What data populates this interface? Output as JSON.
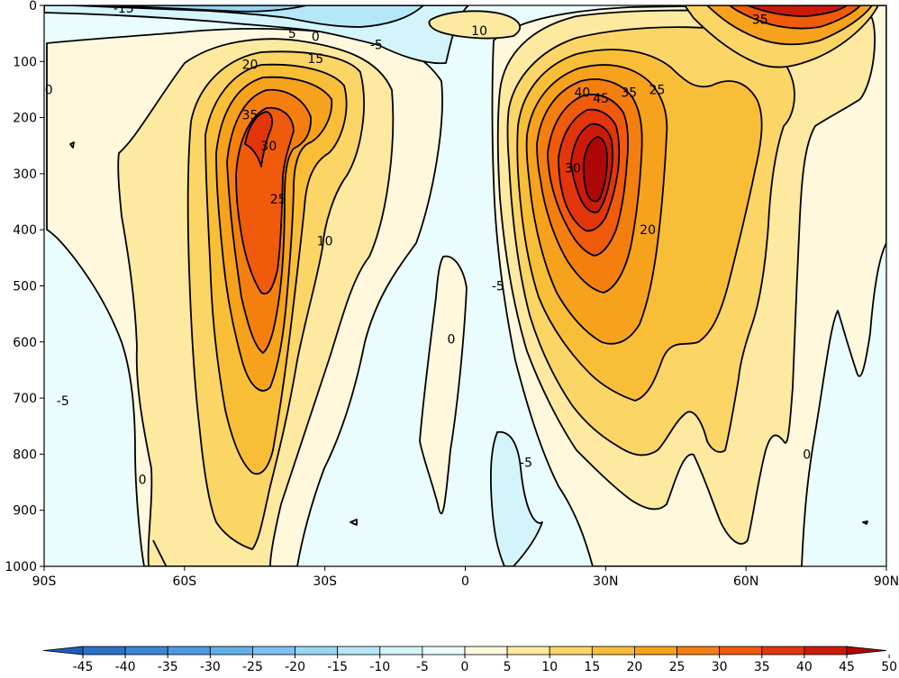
{
  "chart_data": {
    "type": "contour",
    "x_ticks": [
      "90S",
      "60S",
      "30S",
      "0",
      "30N",
      "60N",
      "90N"
    ],
    "x_values": [
      -90,
      -60,
      -30,
      0,
      30,
      60,
      90
    ],
    "y_ticks": [
      "0",
      "100",
      "200",
      "300",
      "400",
      "500",
      "600",
      "700",
      "800",
      "900",
      "1000"
    ],
    "y_values": [
      0,
      100,
      200,
      300,
      400,
      500,
      600,
      700,
      800,
      900,
      1000
    ],
    "xlim": [
      -90,
      90
    ],
    "ylim": [
      1000,
      0
    ],
    "y_inverted": true,
    "colorbar": {
      "levels": [
        -50,
        -45,
        -40,
        -35,
        -30,
        -25,
        -20,
        -15,
        -10,
        -5,
        0,
        5,
        10,
        15,
        20,
        25,
        30,
        35,
        40,
        45,
        50
      ],
      "tick_labels": [
        "-45",
        "-40",
        "-35",
        "-30",
        "-25",
        "-20",
        "-15",
        "-10",
        "-5",
        "0",
        "5",
        "10",
        "15",
        "20",
        "25",
        "30",
        "35",
        "40",
        "45",
        "50"
      ],
      "colors": [
        "#1b5fb8",
        "#2a72c8",
        "#3a86d6",
        "#4d9ae2",
        "#62aeea",
        "#7cc2f0",
        "#98d6f4",
        "#b6e7f8",
        "#d4f4fb",
        "#e9fdfe",
        "#fff8dc",
        "#fde9a0",
        "#fbd565",
        "#f9be38",
        "#f7a21c",
        "#f47f0f",
        "#f05a0b",
        "#e2360a",
        "#cc1a09",
        "#ae0708"
      ],
      "extend": "both"
    },
    "features": [
      {
        "name": "southern_jet",
        "lat": -45,
        "pressure": 220,
        "max_value": 35
      },
      {
        "name": "northern_jet",
        "lat": 30,
        "pressure": 200,
        "max_value": 45
      },
      {
        "name": "polar_upper",
        "lat": 70,
        "pressure": 10,
        "max_value": 35
      },
      {
        "name": "equatorial_easterlies_upper",
        "lat": -15,
        "pressure": 30,
        "min_value": -15
      }
    ],
    "contour_labels": [
      {
        "text": "-15",
        "lat": -73,
        "p": 5
      },
      {
        "text": "5",
        "lat": -37,
        "p": 50
      },
      {
        "text": "0",
        "lat": -32,
        "p": 55
      },
      {
        "text": "-5",
        "lat": -19,
        "p": 70
      },
      {
        "text": "20",
        "lat": -46,
        "p": 105
      },
      {
        "text": "15",
        "lat": -32,
        "p": 95
      },
      {
        "text": "0",
        "lat": -89,
        "p": 150
      },
      {
        "text": "35",
        "lat": -46,
        "p": 195
      },
      {
        "text": "30",
        "lat": -42,
        "p": 250
      },
      {
        "text": "25",
        "lat": -40,
        "p": 345
      },
      {
        "text": "10",
        "lat": -30,
        "p": 420
      },
      {
        "text": "-5",
        "lat": -86,
        "p": 705
      },
      {
        "text": "0",
        "lat": -69,
        "p": 845
      },
      {
        "text": "10",
        "lat": 3,
        "p": 45
      },
      {
        "text": "40",
        "lat": 25,
        "p": 155
      },
      {
        "text": "45",
        "lat": 29,
        "p": 165
      },
      {
        "text": "35",
        "lat": 35,
        "p": 155
      },
      {
        "text": "25",
        "lat": 41,
        "p": 150
      },
      {
        "text": "30",
        "lat": 23,
        "p": 290
      },
      {
        "text": "20",
        "lat": 39,
        "p": 400
      },
      {
        "text": "35",
        "lat": 63,
        "p": 25
      },
      {
        "text": "0",
        "lat": -3,
        "p": 595
      },
      {
        "text": "-5",
        "lat": 7,
        "p": 500
      },
      {
        "text": "-5",
        "lat": 13,
        "p": 815
      },
      {
        "text": "0",
        "lat": 73,
        "p": 800
      }
    ]
  }
}
